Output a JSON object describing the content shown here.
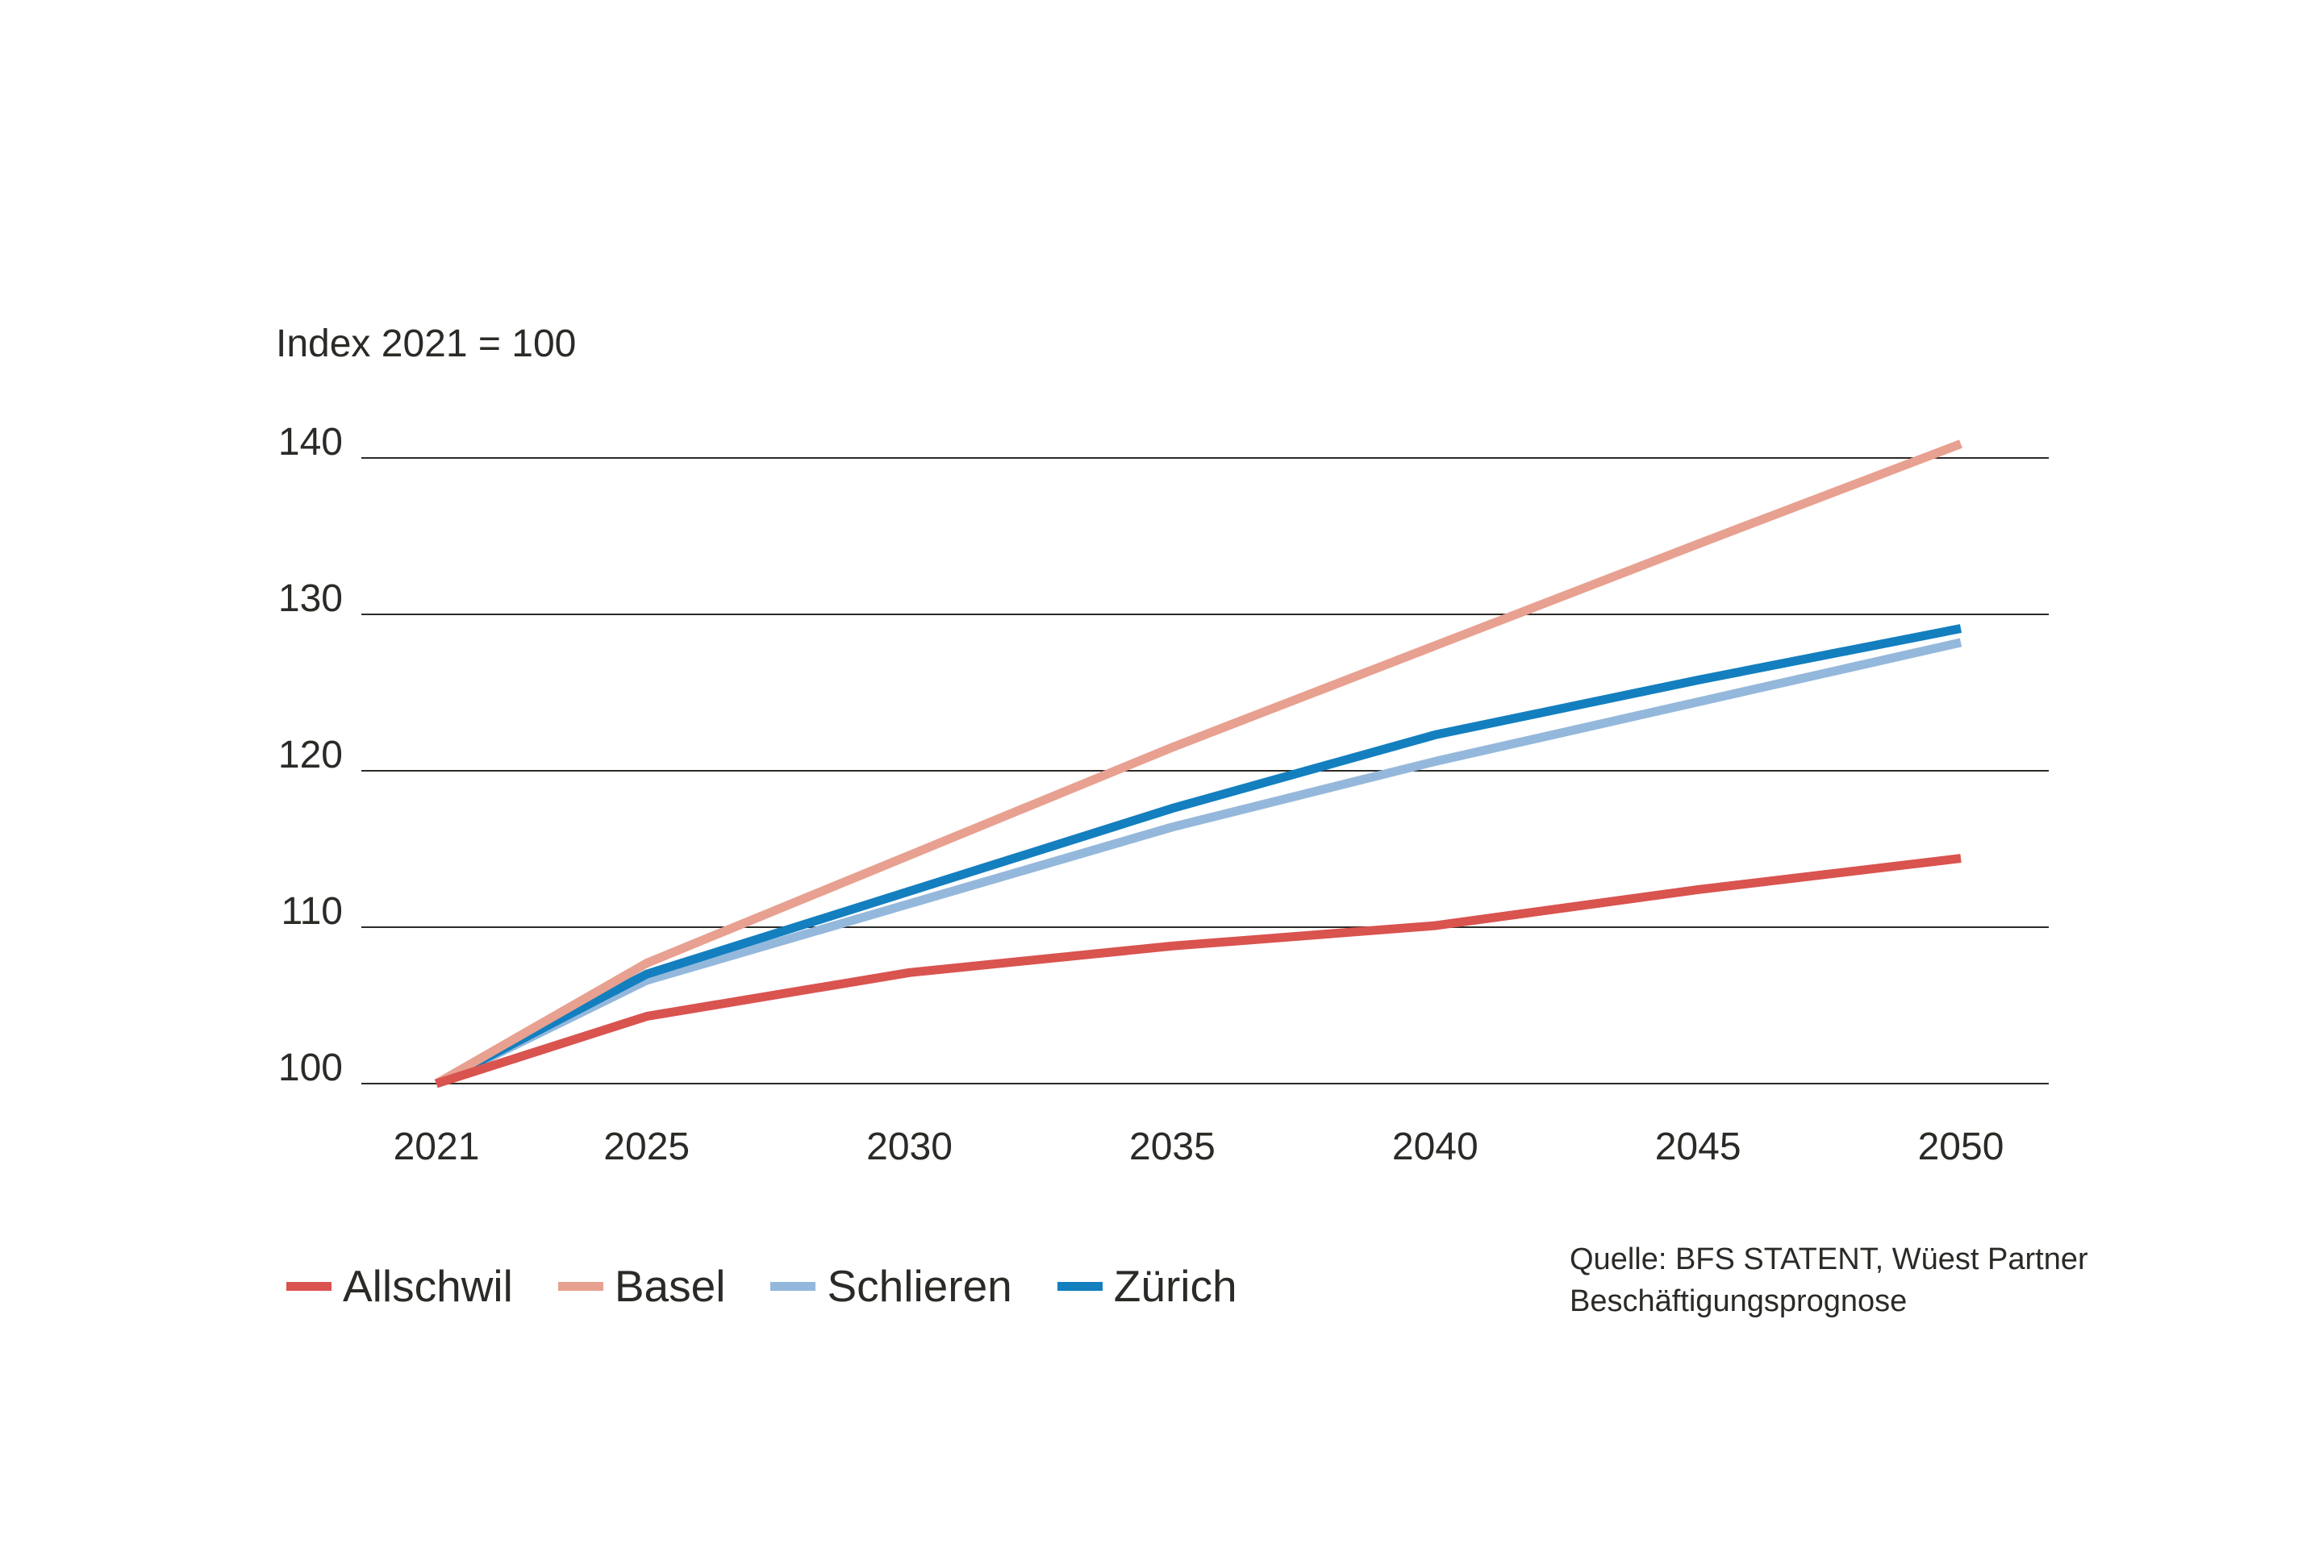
{
  "chart_data": {
    "type": "line",
    "title": "",
    "ylabel": "Index 2021 = 100",
    "xlabel": "",
    "x": [
      2021,
      2025,
      2030,
      2035,
      2040,
      2045,
      2050
    ],
    "x_tick_labels": [
      "2021",
      "2025",
      "2030",
      "2035",
      "2040",
      "2045",
      "2050"
    ],
    "y_ticks": [
      100,
      110,
      120,
      130,
      140
    ],
    "y_tick_labels": [
      "100",
      "110",
      "120",
      "130",
      "140"
    ],
    "ylim": [
      100,
      140
    ],
    "grid": true,
    "legend_position": "bottom-left",
    "series": [
      {
        "name": "Allschwil",
        "color": "#d9534f",
        "values": [
          100,
          104.3,
          107.1,
          108.8,
          110.1,
          112.4,
          114.4
        ]
      },
      {
        "name": "Basel",
        "color": "#e8a090",
        "values": [
          100,
          107.7,
          114.6,
          121.5,
          128.0,
          134.5,
          140.9
        ]
      },
      {
        "name": "Schlieren",
        "color": "#94b8dc",
        "values": [
          100,
          106.6,
          111.5,
          116.4,
          120.6,
          124.4,
          128.2
        ]
      },
      {
        "name": "Zürich",
        "color": "#137fbf",
        "values": [
          100,
          107.0,
          112.3,
          117.6,
          122.3,
          125.8,
          129.1
        ]
      }
    ]
  },
  "source": {
    "line1": "Quelle: BFS STATENT, Wüest Partner",
    "line2": "Beschäftigungsprognose"
  }
}
